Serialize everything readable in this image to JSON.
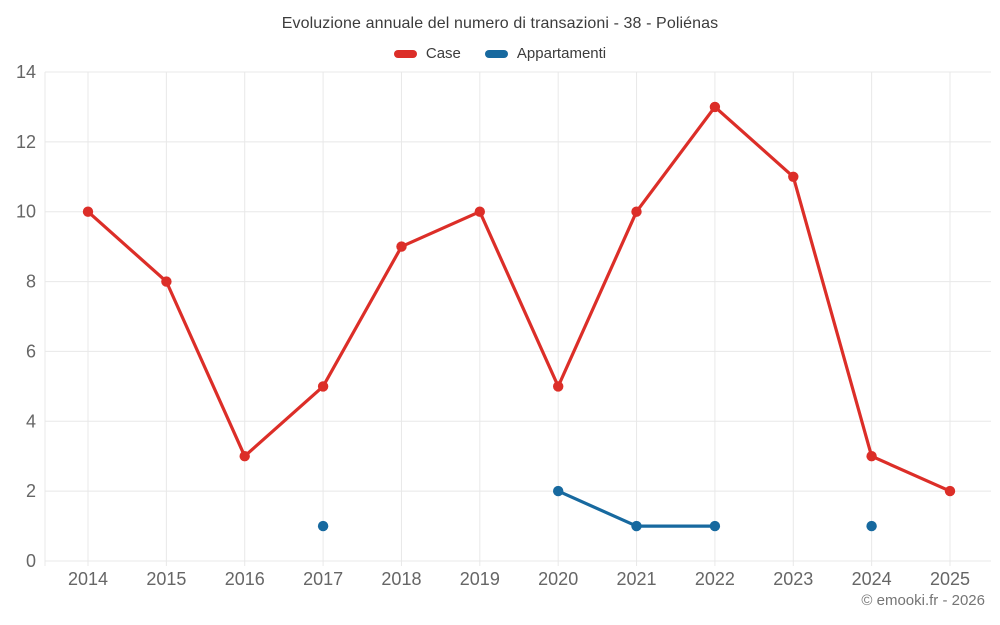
{
  "page": {
    "title": "Evoluzione annuale del numero di transazioni - 38 - Poliénas",
    "footer": "© emooki.fr - 2026"
  },
  "colors": {
    "case_red": "#dc2e28",
    "appartamenti_blue": "#17699f",
    "grid": "#e8e8e8",
    "axis_text": "#666666",
    "title_text": "#3c3c3c",
    "footer_text": "#757575",
    "background": "#ffffff"
  },
  "chart_data": {
    "type": "line",
    "title": "Evoluzione annuale del numero di transazioni - 38 - Poliénas",
    "categories": [
      "2014",
      "2015",
      "2016",
      "2017",
      "2018",
      "2019",
      "2020",
      "2021",
      "2022",
      "2023",
      "2024",
      "2025"
    ],
    "series": [
      {
        "name": "Case",
        "color": "#dc2e28",
        "values": [
          10,
          8,
          3,
          5,
          9,
          10,
          5,
          10,
          13,
          11,
          3,
          2
        ]
      },
      {
        "name": "Appartamenti",
        "color": "#17699f",
        "values": [
          null,
          null,
          null,
          1,
          null,
          null,
          2,
          1,
          1,
          null,
          1,
          null
        ]
      }
    ],
    "xlabel": "",
    "ylabel": "",
    "ylim": [
      0,
      14
    ],
    "yticks": [
      0,
      2,
      4,
      6,
      8,
      10,
      12,
      14
    ],
    "grid": true,
    "legend_position": "top"
  }
}
